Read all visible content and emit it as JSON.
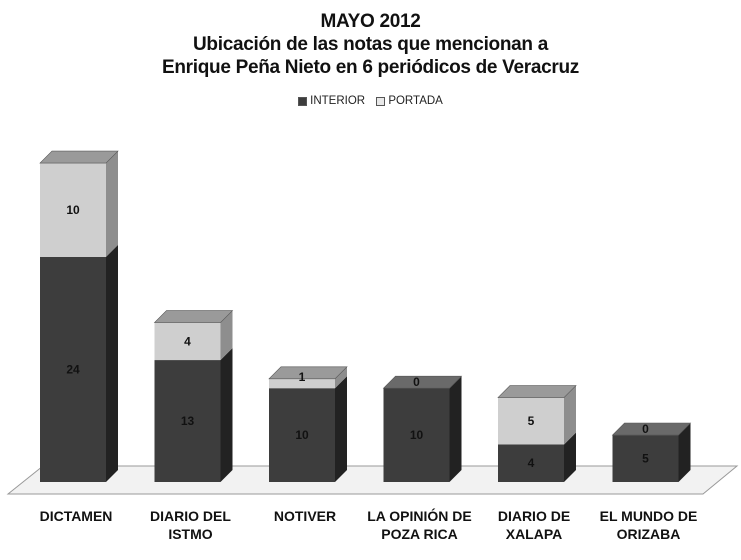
{
  "chart_data": {
    "type": "bar",
    "stacked": true,
    "style": "3d",
    "title": [
      "MAYO 2012",
      "Ubicación de las notas que mencionan a",
      "Enrique Peña Nieto en 6 periódicos de Veracruz"
    ],
    "legend_position": "top",
    "categories": [
      [
        "DICTAMEN"
      ],
      [
        "DIARIO DEL",
        "ISTMO"
      ],
      [
        "NOTIVER"
      ],
      [
        "LA OPINIÓN DE",
        "POZA RICA"
      ],
      [
        "DIARIO DE",
        "XALAPA"
      ],
      [
        "EL MUNDO DE",
        "ORIZABA"
      ]
    ],
    "series": [
      {
        "name": "INTERIOR",
        "values": [
          24,
          13,
          10,
          10,
          4,
          5
        ],
        "color": "#3d3d3d",
        "side_color": "#222222",
        "top_color": "#6a6a6a"
      },
      {
        "name": "PORTADA",
        "values": [
          10,
          4,
          1,
          0,
          5,
          0
        ],
        "color": "#cfcfcf",
        "side_color": "#8e8e8e",
        "top_color": "#9a9a9a"
      }
    ],
    "ylim": [
      0,
      34
    ],
    "xlabel": "",
    "ylabel": "",
    "grid": false
  }
}
